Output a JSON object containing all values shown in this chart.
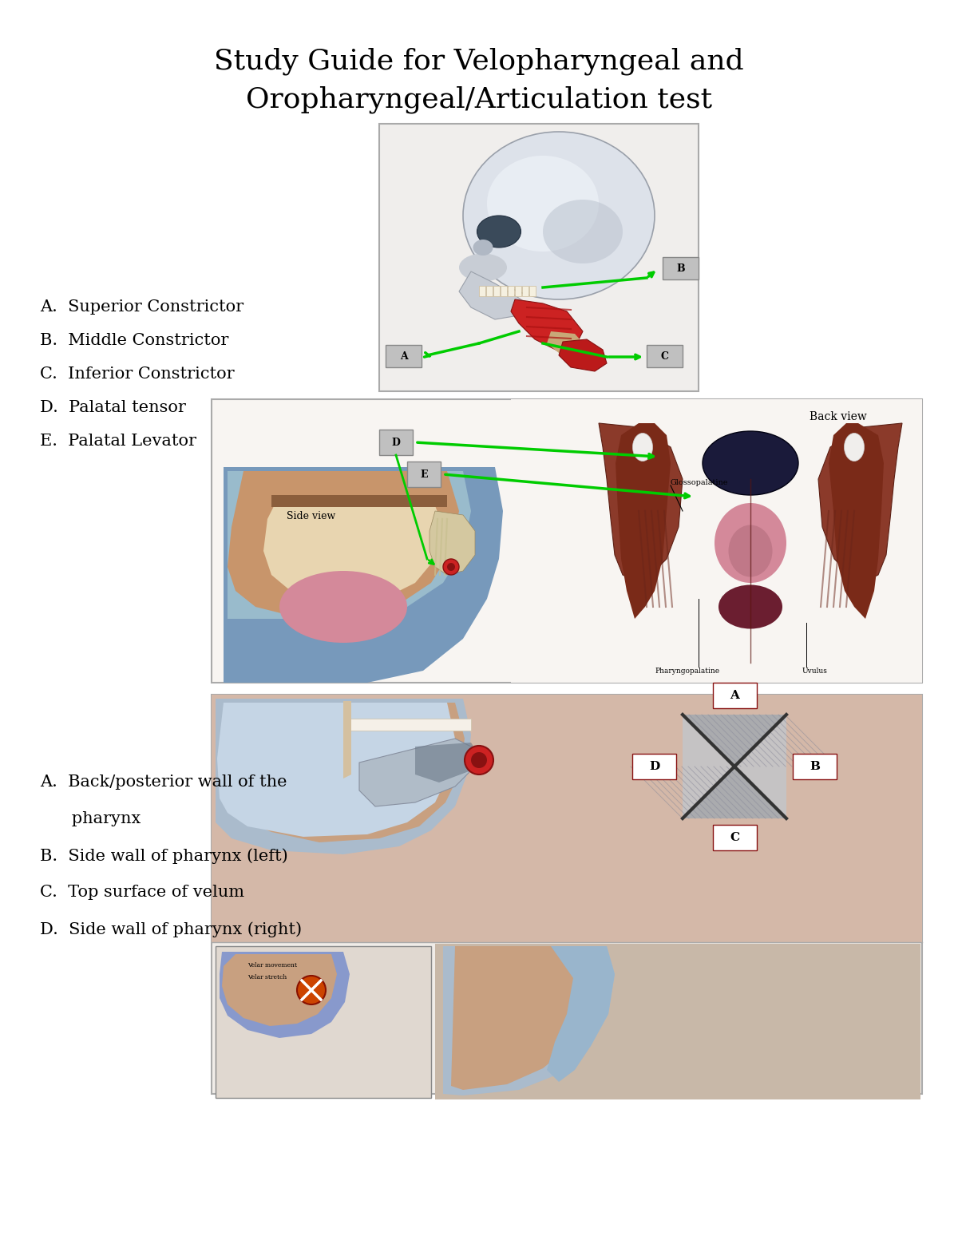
{
  "title_line1": "Study Guide for Velopharyngeal and",
  "title_line2": "Oropharyngeal/Articulation test",
  "title_fontsize": 26,
  "title_font": "serif",
  "background_color": "#ffffff",
  "text_color": "#000000",
  "section1_labels": [
    "A.  Superior Constrictor",
    "B.  Middle Constrictor",
    "C.  Inferior Constrictor",
    "D.  Palatal tensor",
    "E.  Palatal Levator"
  ],
  "section2_labels": [
    "A.  Back/posterior wall of the",
    "      pharynx",
    "B.  Side wall of pharynx (left)",
    "C.  Top surface of velum",
    "D.  Side wall of pharynx (right)"
  ],
  "page_width": 12.0,
  "page_height": 15.53,
  "dpi": 100
}
